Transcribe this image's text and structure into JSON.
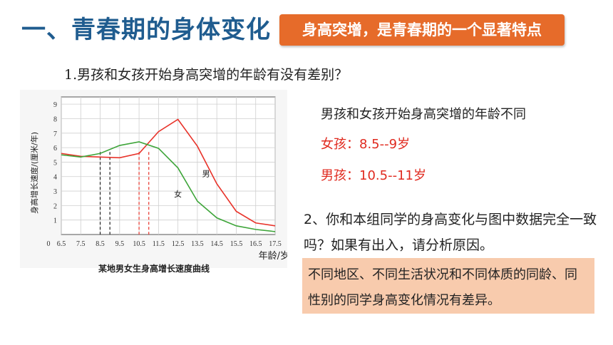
{
  "title": "一、青春期的身体变化",
  "badge": "身高突增，是青春期的一个显著特点",
  "question1": "1.男孩和女孩开始身高突增的年龄有没有差别？",
  "answer_main": "男孩和女孩开始身高突增的年龄不同",
  "answer_girl": "女孩：8.5--9岁",
  "answer_boy": "男孩：10.5--11岁",
  "question2": "2、你和本组同学的身高变化与图中数据完全一致吗？如果有出入，请分析原因。",
  "answer2": "不同地区、不同生活状况和不同体质的同龄、同性别的同学身高变化情况有差异。",
  "colors": {
    "title": "#1f5c8f",
    "badge": "#e66b2a",
    "boy_line": "#e8332a",
    "girl_line": "#3ea53a",
    "answer_box": "#f8cbad"
  },
  "chart_data": {
    "type": "line",
    "title": "某地男女生身高增长速度曲线",
    "xlabel": "年龄/岁",
    "ylabel": "身高增长速度/(厘米/年)",
    "x": [
      6.5,
      7.5,
      8.5,
      9.5,
      10.5,
      11.5,
      12.5,
      13.5,
      14.5,
      15.5,
      16.5,
      17.5
    ],
    "x_ticks": [
      "6.5",
      "7.5",
      "8.5",
      "9.5",
      "10.5",
      "11.5",
      "12.5",
      "13.5",
      "14.5",
      "15.5",
      "16.5",
      "17.5"
    ],
    "y_ticks": [
      "0",
      "1",
      "2",
      "3",
      "4",
      "5",
      "6",
      "7",
      "8",
      "9"
    ],
    "xlim": [
      6.5,
      17.5
    ],
    "ylim": [
      0,
      9.5
    ],
    "series": [
      {
        "name": "男",
        "color": "#e8332a",
        "values": [
          5.6,
          5.4,
          5.35,
          5.3,
          5.6,
          7.1,
          7.95,
          6.1,
          3.5,
          1.6,
          0.8,
          0.6
        ]
      },
      {
        "name": "女",
        "color": "#3ea53a",
        "values": [
          5.5,
          5.35,
          5.6,
          6.15,
          6.4,
          5.95,
          4.6,
          2.3,
          1.15,
          0.6,
          0.35,
          0.2
        ]
      }
    ],
    "markers": [
      {
        "x": 8.5,
        "color": "#222",
        "style": "dashed"
      },
      {
        "x": 9.0,
        "color": "#222",
        "style": "dashed"
      },
      {
        "x": 10.5,
        "color": "#e8332a",
        "style": "dashed"
      },
      {
        "x": 11.0,
        "color": "#e8332a",
        "style": "dashed"
      }
    ],
    "grid": true
  }
}
